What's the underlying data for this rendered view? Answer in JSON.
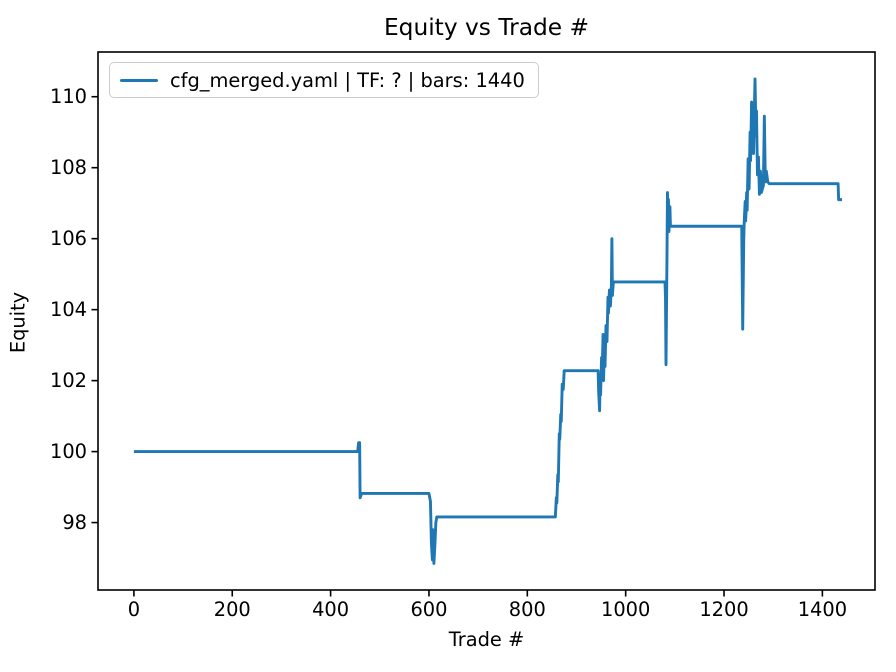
{
  "figure": {
    "background": "#ffffff",
    "frame_color": "#000000"
  },
  "chart_data": {
    "type": "line",
    "title": "Equity vs Trade #",
    "xlabel": "Trade #",
    "ylabel": "Equity",
    "xlim": [
      -73,
      1507
    ],
    "ylim": [
      96.1,
      111.26
    ],
    "x_ticks": [
      0,
      200,
      400,
      600,
      800,
      1000,
      1200,
      1400
    ],
    "y_ticks": [
      98,
      100,
      102,
      104,
      106,
      108,
      110
    ],
    "grid": false,
    "legend_position": "upper left",
    "series": [
      {
        "name": "cfg_merged.yaml | TF: ? | bars: 1440",
        "color": "#1f77b4",
        "points": [
          [
            0,
            100
          ],
          [
            455,
            100
          ],
          [
            457,
            100.25
          ],
          [
            459,
            100.25
          ],
          [
            460,
            98.7
          ],
          [
            463,
            98.82
          ],
          [
            600,
            98.82
          ],
          [
            603,
            98.6
          ],
          [
            605,
            97.4
          ],
          [
            607,
            96.95
          ],
          [
            608,
            97.8
          ],
          [
            610,
            96.85
          ],
          [
            612,
            97.35
          ],
          [
            614,
            98.0
          ],
          [
            616,
            98.16
          ],
          [
            857,
            98.16
          ],
          [
            859,
            98.7
          ],
          [
            860,
            98.55
          ],
          [
            862,
            99.35
          ],
          [
            863,
            99.15
          ],
          [
            865,
            100.5
          ],
          [
            866,
            100.35
          ],
          [
            868,
            101.05
          ],
          [
            869,
            100.85
          ],
          [
            871,
            101.9
          ],
          [
            873,
            101.75
          ],
          [
            875,
            102.28
          ],
          [
            944,
            102.28
          ],
          [
            945,
            101.7
          ],
          [
            947,
            101.15
          ],
          [
            948,
            102.1
          ],
          [
            949,
            101.6
          ],
          [
            951,
            102.65
          ],
          [
            952,
            102.1
          ],
          [
            954,
            103.3
          ],
          [
            955,
            102.0
          ],
          [
            957,
            103.1
          ],
          [
            958,
            102.4
          ],
          [
            960,
            103.55
          ],
          [
            962,
            103.1
          ],
          [
            964,
            104.35
          ],
          [
            965,
            103.9
          ],
          [
            967,
            104.55
          ],
          [
            969,
            104.1
          ],
          [
            971,
            104.7
          ],
          [
            972,
            106.0
          ],
          [
            973,
            104.4
          ],
          [
            975,
            104.78
          ],
          [
            1080,
            104.78
          ],
          [
            1081,
            104.3
          ],
          [
            1082,
            102.45
          ],
          [
            1084,
            105.5
          ],
          [
            1085,
            107.3
          ],
          [
            1086,
            106.3
          ],
          [
            1087,
            107.1
          ],
          [
            1088,
            106.2
          ],
          [
            1090,
            106.9
          ],
          [
            1091,
            106.35
          ],
          [
            1236,
            106.35
          ],
          [
            1238,
            103.45
          ],
          [
            1240,
            105.9
          ],
          [
            1241,
            106.45
          ],
          [
            1243,
            107.05
          ],
          [
            1244,
            106.5
          ],
          [
            1246,
            107.3
          ],
          [
            1247,
            106.8
          ],
          [
            1249,
            108.25
          ],
          [
            1251,
            107.4
          ],
          [
            1253,
            109.0
          ],
          [
            1254,
            108.2
          ],
          [
            1256,
            109.85
          ],
          [
            1257,
            108.9
          ],
          [
            1259,
            109.3
          ],
          [
            1260,
            108.4
          ],
          [
            1263,
            110.5
          ],
          [
            1265,
            108.9
          ],
          [
            1266,
            109.6
          ],
          [
            1268,
            107.8
          ],
          [
            1270,
            108.3
          ],
          [
            1272,
            107.25
          ],
          [
            1274,
            107.9
          ],
          [
            1276,
            107.3
          ],
          [
            1280,
            107.5
          ],
          [
            1282,
            109.45
          ],
          [
            1284,
            107.6
          ],
          [
            1286,
            107.9
          ],
          [
            1289,
            107.6
          ],
          [
            1292,
            107.55
          ],
          [
            1432,
            107.55
          ],
          [
            1433,
            107.1
          ],
          [
            1440,
            107.1
          ]
        ]
      }
    ]
  }
}
